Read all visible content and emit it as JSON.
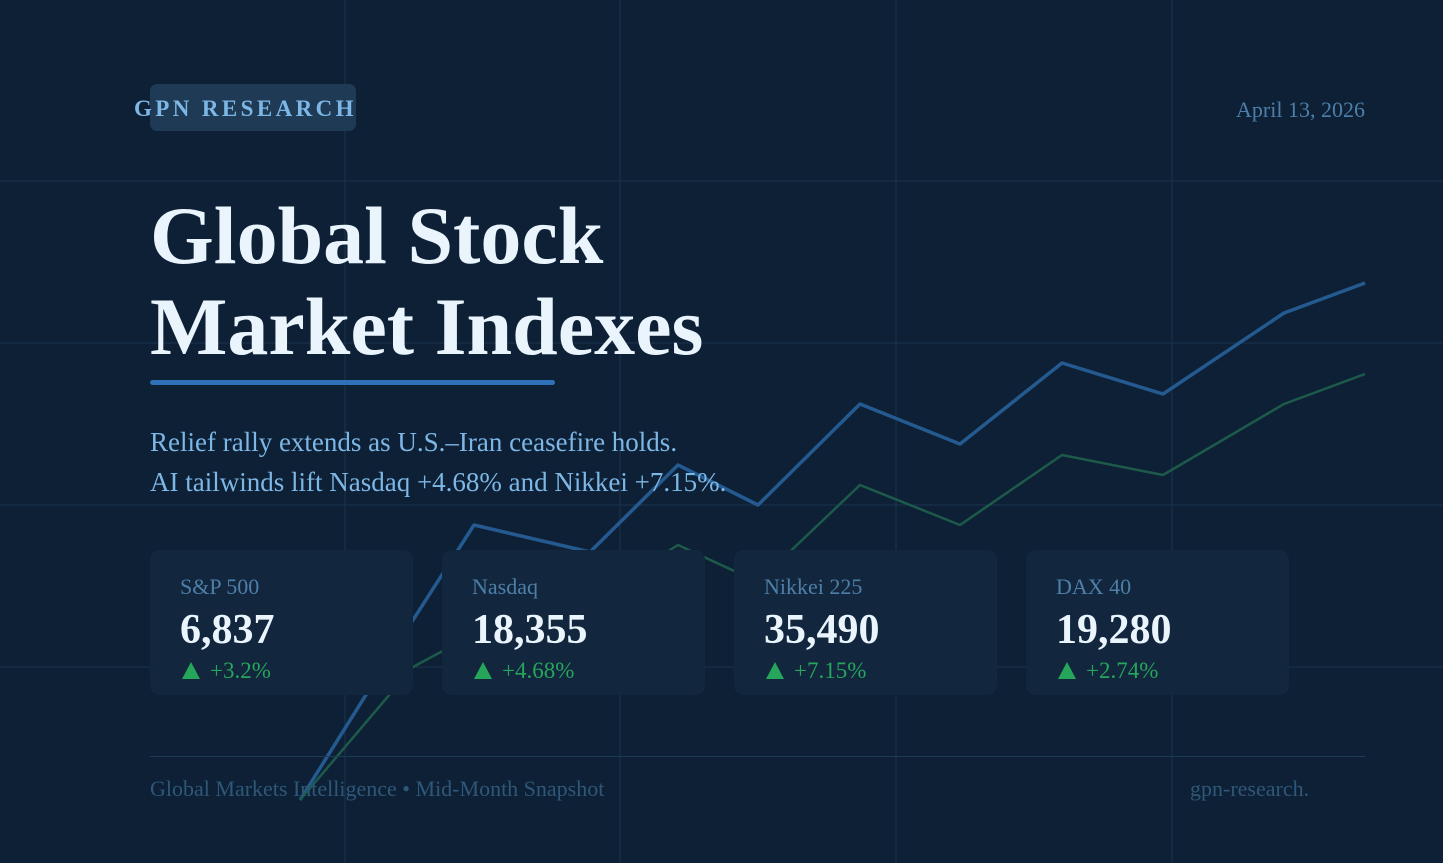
{
  "brand": "GPN RESEARCH",
  "date": "April 13, 2026",
  "title": [
    "Global Stock",
    "Market Indexes"
  ],
  "subtitle": [
    "Relief rally extends as U.S.–Iran ceasefire holds.",
    "AI tailwinds lift Nasdaq +4.68% and Nikkei +7.15%."
  ],
  "cards": [
    {
      "name": "S&P 500",
      "value": "6,837",
      "change": "+3.2%",
      "direction": "up"
    },
    {
      "name": "Nasdaq",
      "value": "18,355",
      "change": "+4.68%",
      "direction": "up"
    },
    {
      "name": "Nikkei 225",
      "value": "35,490",
      "change": "+7.15%",
      "direction": "up"
    },
    {
      "name": "DAX 40",
      "value": "19,280",
      "change": "+2.74%",
      "direction": "up"
    }
  ],
  "footer": {
    "left": "Global Markets Intelligence • Mid-Month Snapshot",
    "right": "gpn-research."
  },
  "colors": {
    "background": "#0d2036",
    "accent": "#2f71b8",
    "positive": "#26a65b",
    "trend_line_1": "#245a8f",
    "trend_line_2": "#1d5a4a"
  }
}
